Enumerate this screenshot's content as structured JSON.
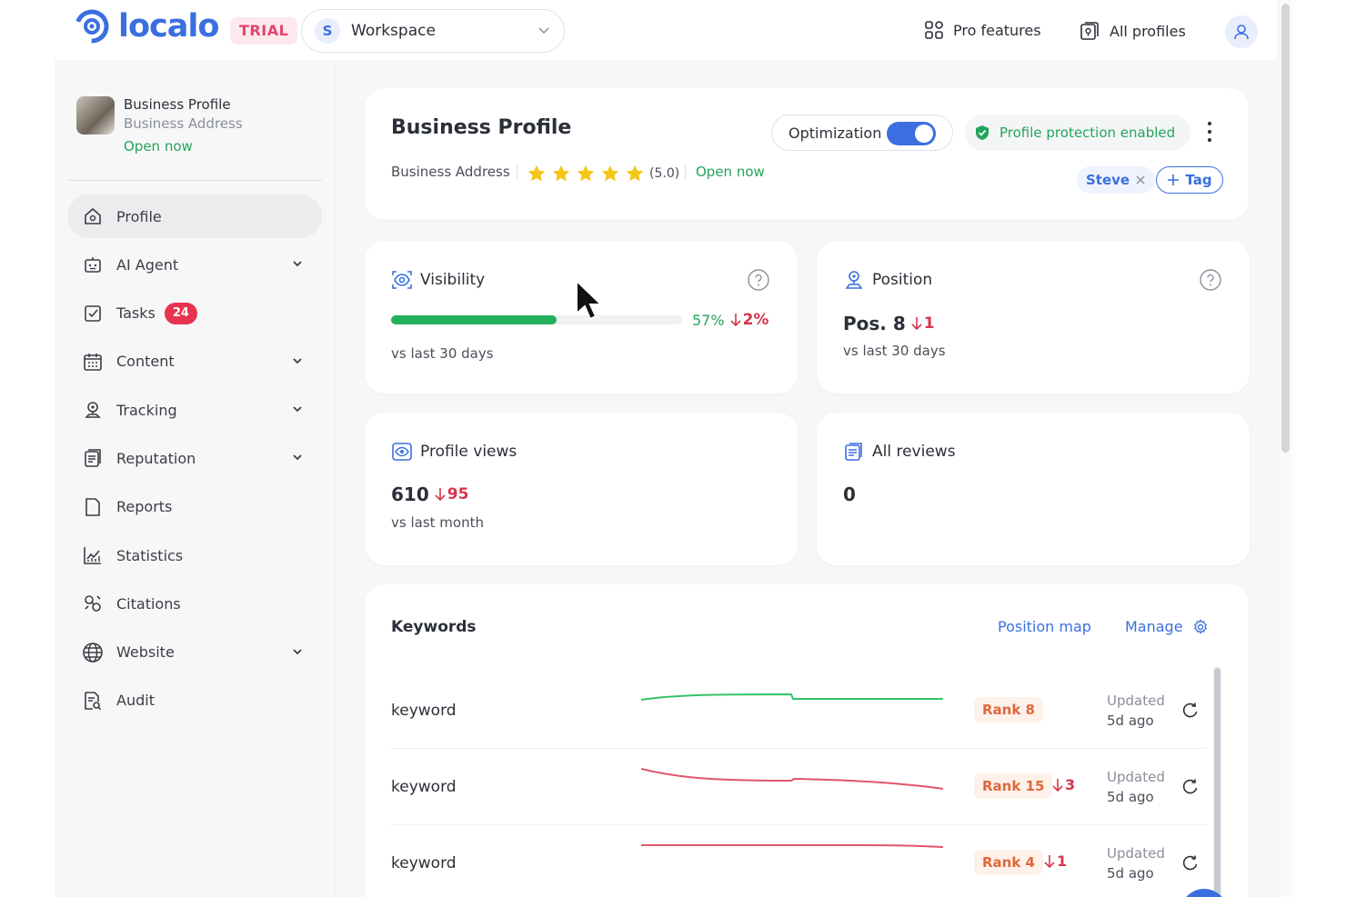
{
  "topbar": {
    "logo_text": "localo",
    "trial_label": "TRIAL",
    "workspace": {
      "initial": "S",
      "label": "Workspace"
    },
    "pro_features_label": "Pro features",
    "all_profiles_label": "All profiles"
  },
  "sidebar": {
    "business": {
      "name": "Business Profile",
      "address": "Business Address",
      "status": "Open now"
    },
    "items": [
      {
        "label": "Profile",
        "icon": "home-icon",
        "active": true,
        "expandable": false
      },
      {
        "label": "AI Agent",
        "icon": "robot-icon",
        "expandable": true
      },
      {
        "label": "Tasks",
        "icon": "checkbox-icon",
        "badge": "24",
        "expandable": false
      },
      {
        "label": "Content",
        "icon": "calendar-icon",
        "expandable": true
      },
      {
        "label": "Tracking",
        "icon": "location-pin-icon",
        "expandable": true
      },
      {
        "label": "Reputation",
        "icon": "reviews-icon",
        "expandable": true
      },
      {
        "label": "Reports",
        "icon": "document-icon",
        "expandable": false
      },
      {
        "label": "Statistics",
        "icon": "chart-icon",
        "expandable": false
      },
      {
        "label": "Citations",
        "icon": "link-icon",
        "expandable": false
      },
      {
        "label": "Website",
        "icon": "globe-icon",
        "expandable": true
      },
      {
        "label": "Audit",
        "icon": "audit-icon",
        "expandable": false
      }
    ]
  },
  "header": {
    "title": "Business Profile",
    "address": "Business Address",
    "rating": "(5.0)",
    "stars": 5,
    "status": "Open now",
    "optimization_label": "Optimization",
    "optimization_on": true,
    "protection_label": "Profile protection enabled",
    "tag": "Steve",
    "add_tag_label": "Tag"
  },
  "visibility": {
    "title": "Visibility",
    "fraction": 0.57,
    "percent": "57%",
    "delta": "2%",
    "sub": "vs last 30 days"
  },
  "position": {
    "title": "Position",
    "value": "Pos. 8",
    "delta": "1",
    "sub": "vs last 30 days"
  },
  "profile_views": {
    "title": "Profile views",
    "value": "610",
    "delta": "95",
    "sub": "vs last month"
  },
  "all_reviews": {
    "title": "All reviews",
    "value": "0"
  },
  "keywords": {
    "title": "Keywords",
    "position_map_label": "Position map",
    "manage_label": "Manage",
    "rows": [
      {
        "name": "keyword",
        "rank": "Rank 8",
        "delta": "",
        "updated": "Updated",
        "ago": "5d ago",
        "trend_color": "#34c36a"
      },
      {
        "name": "keyword",
        "rank": "Rank 15",
        "delta": "3",
        "updated": "Updated",
        "ago": "5d ago",
        "trend_color": "#e0566b"
      },
      {
        "name": "keyword",
        "rank": "Rank 4",
        "delta": "1",
        "updated": "Updated",
        "ago": "5d ago",
        "trend_color": "#e0566b"
      }
    ]
  },
  "colors": {
    "accent": "#3b6fe0",
    "success": "#22a55a",
    "danger": "#d5364e",
    "rank": "#e0683a"
  }
}
